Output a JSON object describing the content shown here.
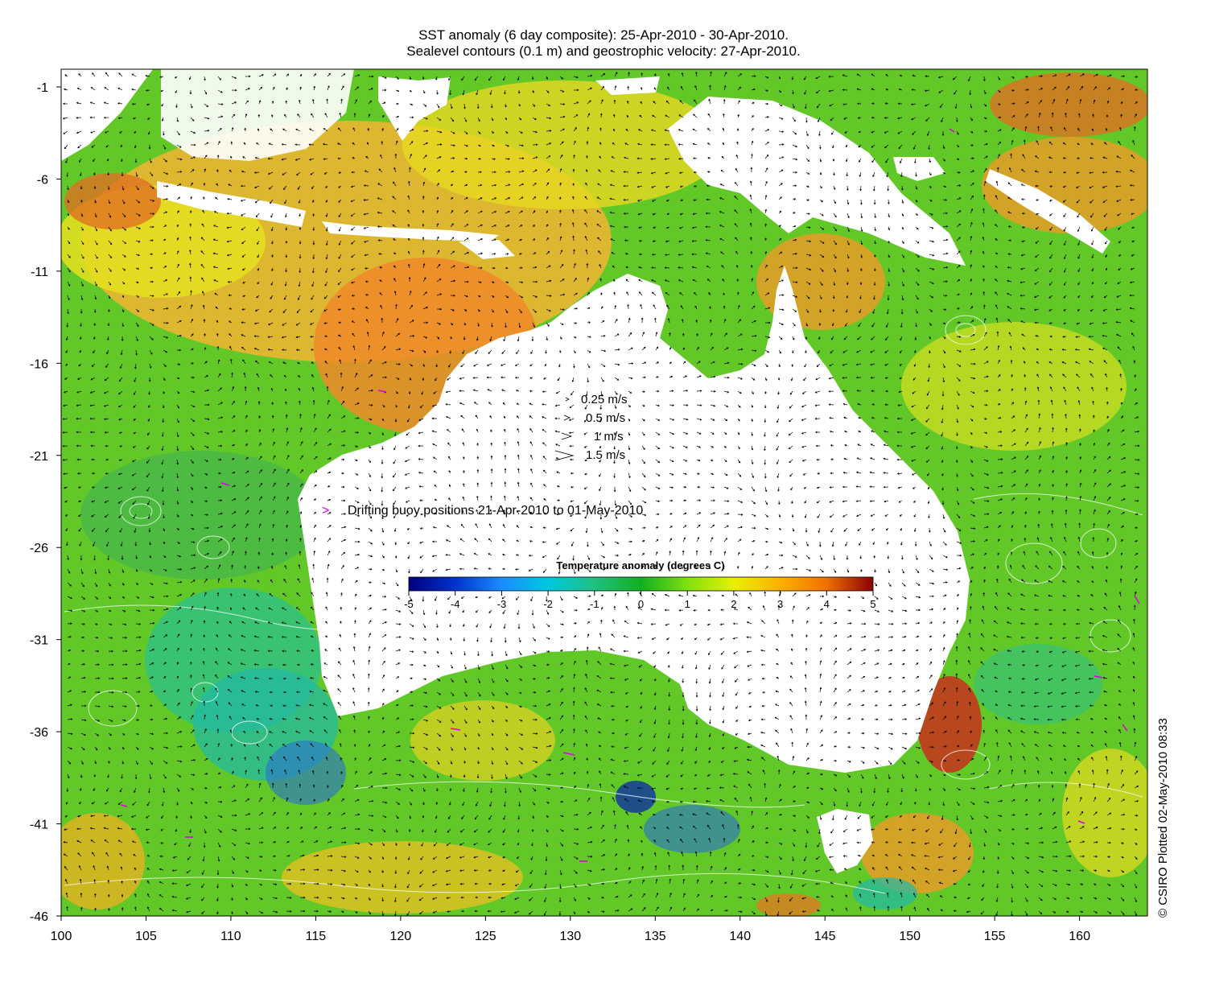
{
  "title_line1": "SST anomaly (6 day composite): 25-Apr-2010 - 30-Apr-2010.",
  "title_line2": "Sealevel contours (0.1 m) and geostrophic velocity: 27-Apr-2010.",
  "credit": "© CSIRO Plotted 02-May-2010 08:33",
  "x_ticks": [
    "100",
    "105",
    "110",
    "115",
    "120",
    "125",
    "130",
    "135",
    "140",
    "145",
    "150",
    "155",
    "160"
  ],
  "y_ticks": [
    "-1",
    "-6",
    "-11",
    "-16",
    "-21",
    "-26",
    "-31",
    "-36",
    "-41",
    "-46"
  ],
  "velocity_legend": [
    {
      "label": "0.25 m/s",
      "speed": 0.25
    },
    {
      "label": "0.5 m/s",
      "speed": 0.5
    },
    {
      "label": "1 m/s",
      "speed": 1
    },
    {
      "label": "1.5 m/s",
      "speed": 1.5
    }
  ],
  "buoy_legend": {
    "label": "Drifting buoy positions 21-Apr-2010 to 01-May-2010",
    "marker": ">",
    "color": "#e000e0"
  },
  "colorbar": {
    "title": "Temperature anomaly (degrees C)",
    "ticks": [
      "-5",
      "-4",
      "-3",
      "-2",
      "-1",
      "0",
      "1",
      "2",
      "3",
      "4",
      "5"
    ],
    "range": [
      -5,
      5
    ],
    "colors": [
      "#00007f",
      "#0033cc",
      "#1a8cff",
      "#00c8e0",
      "#20c080",
      "#10b020",
      "#80e010",
      "#e8f000",
      "#ffb000",
      "#f07000",
      "#c03000",
      "#8b0000"
    ]
  },
  "chart_data": {
    "type": "heatmap",
    "title": "SST anomaly (6 day composite): 25-Apr-2010 - 30-Apr-2010.",
    "subtitle": "Sealevel contours (0.1 m) and geostrophic velocity: 27-Apr-2010.",
    "xlim": [
      100,
      164
    ],
    "ylim": [
      -46,
      0
    ],
    "color_range": [
      -5,
      5
    ],
    "color_label": "Temperature anomaly (degrees C)"
  }
}
